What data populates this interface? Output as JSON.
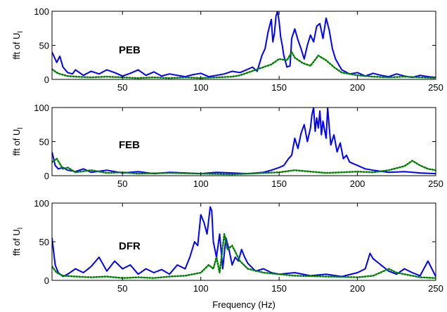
{
  "chart_data": [
    {
      "type": "line",
      "panel_label": "PEB",
      "ylabel": "fft of U",
      "ylabel_sub": "l",
      "xlim": [
        5,
        250
      ],
      "ylim": [
        0,
        100
      ],
      "xticks": [
        50,
        100,
        150,
        200,
        250
      ],
      "yticks": [
        0,
        50,
        100
      ],
      "series": [
        {
          "color": "#0000ff",
          "style": "solid",
          "x": [
            5,
            8,
            10,
            12,
            15,
            18,
            20,
            25,
            30,
            35,
            40,
            45,
            50,
            55,
            60,
            65,
            70,
            75,
            80,
            85,
            90,
            95,
            100,
            105,
            110,
            115,
            120,
            125,
            130,
            133,
            136,
            139,
            141,
            143,
            145,
            146,
            147,
            148,
            149,
            150,
            151,
            152,
            153,
            155,
            157,
            158,
            160,
            162,
            164,
            166,
            168,
            170,
            172,
            174,
            176,
            178,
            180,
            182,
            184,
            186,
            188,
            190,
            195,
            200,
            205,
            210,
            215,
            220,
            225,
            230,
            235,
            240,
            245,
            250
          ],
          "y": [
            40,
            25,
            34,
            18,
            10,
            8,
            14,
            6,
            12,
            8,
            14,
            10,
            5,
            9,
            14,
            6,
            11,
            5,
            8,
            6,
            4,
            7,
            9,
            4,
            6,
            8,
            12,
            10,
            15,
            18,
            12,
            35,
            45,
            70,
            88,
            55,
            68,
            93,
            100,
            85,
            62,
            50,
            35,
            18,
            20,
            60,
            74,
            58,
            45,
            30,
            50,
            65,
            55,
            78,
            82,
            60,
            90,
            72,
            45,
            30,
            22,
            14,
            8,
            10,
            5,
            9,
            6,
            4,
            8,
            5,
            3,
            6,
            4,
            3
          ]
        },
        {
          "color": "#008000",
          "style": "dotted",
          "x": [
            5,
            8,
            10,
            15,
            20,
            30,
            40,
            50,
            60,
            70,
            80,
            90,
            100,
            110,
            120,
            125,
            130,
            135,
            140,
            145,
            150,
            155,
            158,
            160,
            165,
            170,
            175,
            180,
            185,
            190,
            200,
            210,
            220,
            230,
            240,
            250
          ],
          "y": [
            15,
            10,
            8,
            5,
            4,
            3,
            4,
            3,
            2,
            3,
            2,
            3,
            2,
            3,
            4,
            6,
            10,
            14,
            18,
            22,
            30,
            28,
            40,
            32,
            24,
            20,
            35,
            28,
            18,
            10,
            6,
            4,
            3,
            4,
            3,
            2
          ]
        }
      ]
    },
    {
      "type": "line",
      "panel_label": "FEB",
      "ylabel": "fft of U",
      "ylabel_sub": "l",
      "xlim": [
        5,
        250
      ],
      "ylim": [
        0,
        100
      ],
      "xticks": [
        50,
        100,
        150,
        200,
        250
      ],
      "yticks": [
        0,
        50,
        100
      ],
      "series": [
        {
          "color": "#0000ff",
          "style": "solid",
          "x": [
            5,
            7,
            9,
            12,
            15,
            20,
            25,
            30,
            40,
            50,
            60,
            70,
            80,
            90,
            100,
            110,
            120,
            130,
            140,
            145,
            150,
            153,
            156,
            158,
            160,
            162,
            164,
            166,
            168,
            170,
            171,
            172,
            173,
            174,
            175,
            176,
            177,
            178,
            180,
            181,
            182,
            183,
            185,
            187,
            189,
            191,
            193,
            195,
            200,
            205,
            210,
            220,
            230,
            240,
            250
          ],
          "y": [
            35,
            15,
            10,
            12,
            8,
            6,
            10,
            5,
            8,
            4,
            6,
            3,
            5,
            4,
            3,
            5,
            4,
            3,
            5,
            8,
            12,
            15,
            25,
            30,
            55,
            40,
            62,
            75,
            50,
            70,
            90,
            100,
            65,
            85,
            70,
            95,
            60,
            80,
            55,
            100,
            70,
            45,
            60,
            35,
            48,
            25,
            30,
            20,
            15,
            10,
            8,
            5,
            6,
            4,
            3
          ]
        },
        {
          "color": "#008000",
          "style": "dotted",
          "x": [
            5,
            8,
            12,
            15,
            20,
            30,
            40,
            50,
            60,
            80,
            100,
            120,
            140,
            150,
            160,
            170,
            180,
            190,
            200,
            210,
            220,
            230,
            235,
            240,
            245,
            250
          ],
          "y": [
            20,
            25,
            10,
            12,
            5,
            8,
            4,
            5,
            3,
            4,
            3,
            2,
            4,
            5,
            8,
            6,
            4,
            5,
            6,
            5,
            8,
            14,
            22,
            15,
            10,
            8
          ]
        }
      ]
    },
    {
      "type": "line",
      "panel_label": "DFR",
      "ylabel": "fft of U",
      "ylabel_sub": "l",
      "xlim": [
        5,
        250
      ],
      "ylim": [
        0,
        100
      ],
      "xticks": [
        50,
        100,
        150,
        200,
        250
      ],
      "yticks": [
        0,
        50,
        100
      ],
      "series": [
        {
          "color": "#0000ff",
          "style": "solid",
          "x": [
            5,
            7,
            9,
            12,
            15,
            20,
            25,
            30,
            35,
            40,
            45,
            50,
            55,
            60,
            65,
            70,
            75,
            80,
            85,
            90,
            93,
            96,
            98,
            100,
            102,
            104,
            106,
            107,
            108,
            110,
            112,
            114,
            116,
            118,
            120,
            122,
            124,
            126,
            128,
            130,
            135,
            140,
            145,
            150,
            160,
            170,
            180,
            190,
            200,
            205,
            208,
            210,
            215,
            220,
            225,
            230,
            235,
            240,
            245,
            250
          ],
          "y": [
            55,
            20,
            10,
            5,
            8,
            15,
            10,
            18,
            30,
            12,
            25,
            15,
            20,
            8,
            15,
            10,
            14,
            8,
            20,
            15,
            30,
            50,
            45,
            85,
            75,
            60,
            95,
            90,
            50,
            30,
            60,
            15,
            55,
            40,
            20,
            30,
            25,
            40,
            30,
            22,
            12,
            15,
            10,
            8,
            10,
            6,
            8,
            5,
            10,
            15,
            35,
            28,
            20,
            12,
            8,
            15,
            10,
            6,
            25,
            5
          ]
        },
        {
          "color": "#008000",
          "style": "dotted",
          "x": [
            5,
            8,
            12,
            20,
            30,
            40,
            50,
            60,
            70,
            80,
            90,
            95,
            100,
            105,
            108,
            110,
            112,
            115,
            117,
            120,
            125,
            130,
            140,
            150,
            160,
            180,
            200,
            210,
            220,
            225,
            230,
            240,
            250
          ],
          "y": [
            18,
            10,
            6,
            5,
            4,
            5,
            3,
            4,
            3,
            5,
            6,
            8,
            10,
            20,
            15,
            30,
            10,
            60,
            40,
            45,
            25,
            15,
            10,
            8,
            6,
            5,
            4,
            6,
            15,
            10,
            8,
            4,
            3
          ]
        }
      ]
    }
  ],
  "xlabel": "Frequency (Hz)"
}
